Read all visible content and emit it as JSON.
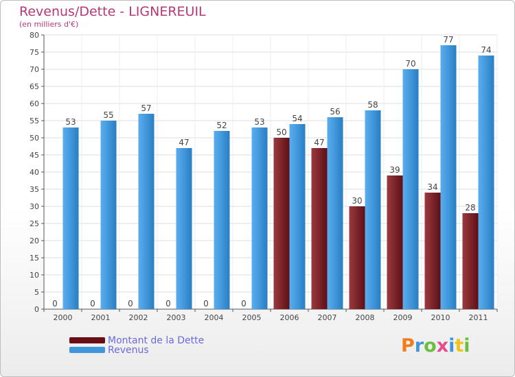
{
  "title": "Revenus/Dette - LIGNEREUIL",
  "subtitle": "(en milliers d'€)",
  "logo_text": "Proxiti",
  "colors": {
    "dette": "#7b1f24",
    "revenus": "#3f97da",
    "title": "#b5377a",
    "legend_text": "#6a6adf"
  },
  "chart_data": {
    "type": "bar",
    "title": "Revenus/Dette - LIGNEREUIL",
    "subtitle": "(en milliers d'€)",
    "categories": [
      "2000",
      "2001",
      "2002",
      "2003",
      "2004",
      "2005",
      "2006",
      "2007",
      "2008",
      "2009",
      "2010",
      "2011"
    ],
    "series": [
      {
        "name": "Montant de la Dette",
        "values": [
          0,
          0,
          0,
          0,
          0,
          0,
          50,
          47,
          30,
          39,
          34,
          28
        ]
      },
      {
        "name": "Revenus",
        "values": [
          53,
          55,
          57,
          47,
          52,
          53,
          54,
          56,
          58,
          70,
          77,
          74
        ]
      }
    ],
    "ylim": [
      0,
      80
    ],
    "yticks": [
      0,
      5,
      10,
      15,
      20,
      25,
      30,
      35,
      40,
      45,
      50,
      55,
      60,
      65,
      70,
      75,
      80
    ],
    "grid": true,
    "legend": "bottom-left"
  }
}
